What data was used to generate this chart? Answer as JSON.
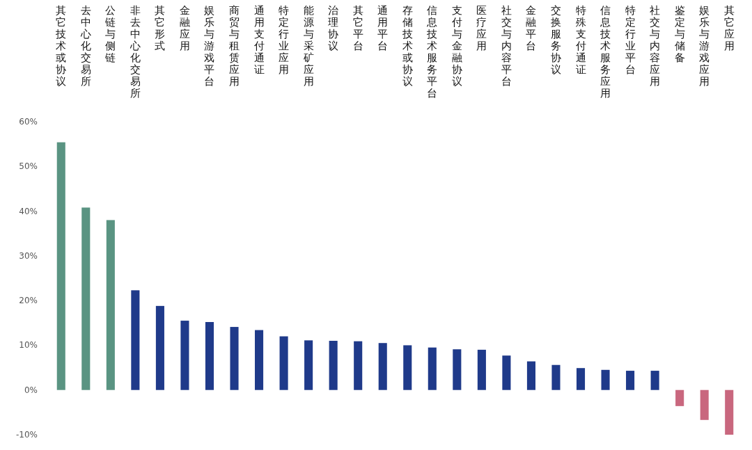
{
  "chart_data": {
    "type": "bar",
    "categories": [
      "其它技术或协议",
      "去中心化交易所",
      "公链与侧链",
      "非去中心化交易所",
      "其它形式",
      "金融应用",
      "娱乐与游戏平台",
      "商贸与租赁应用",
      "通用支付通证",
      "特定行业应用",
      "能源与采矿应用",
      "治理协议",
      "其它平台",
      "通用平台",
      "存储技术或协议",
      "信息技术服务平台",
      "支付与金融协议",
      "医疗应用",
      "社交与内容平台",
      "金融平台",
      "交换服务协议",
      "特殊支付通证",
      "信息技术服务应用",
      "特定行业平台",
      "社交与内容应用",
      "鉴定与储备",
      "娱乐与游戏应用",
      "其它应用"
    ],
    "values": [
      55.4,
      40.8,
      38.0,
      22.3,
      18.8,
      15.5,
      15.2,
      14.1,
      13.4,
      12.0,
      11.1,
      11.0,
      10.9,
      10.5,
      10.0,
      9.5,
      9.1,
      9.0,
      7.7,
      6.4,
      5.6,
      4.9,
      4.5,
      4.3,
      4.3,
      -3.6,
      -6.7,
      -10
    ],
    "colors": [
      "#5a9482",
      "#5a9482",
      "#5a9482",
      "#1f3a8a",
      "#1f3a8a",
      "#1f3a8a",
      "#1f3a8a",
      "#1f3a8a",
      "#1f3a8a",
      "#1f3a8a",
      "#1f3a8a",
      "#1f3a8a",
      "#1f3a8a",
      "#1f3a8a",
      "#1f3a8a",
      "#1f3a8a",
      "#1f3a8a",
      "#1f3a8a",
      "#1f3a8a",
      "#1f3a8a",
      "#1f3a8a",
      "#1f3a8a",
      "#1f3a8a",
      "#1f3a8a",
      "#1f3a8a",
      "#c9677e",
      "#c9677e",
      "#c9677e"
    ],
    "ylim": [
      -10,
      60
    ],
    "yticks": [
      {
        "value": -10,
        "label": "-10%"
      },
      {
        "value": 0,
        "label": "0%"
      },
      {
        "value": 10,
        "label": "10%"
      },
      {
        "value": 20,
        "label": "20%"
      },
      {
        "value": 30,
        "label": "30%"
      },
      {
        "value": 40,
        "label": "40%"
      },
      {
        "value": 50,
        "label": "50%"
      },
      {
        "value": 60,
        "label": "60%"
      }
    ],
    "grid": false
  }
}
